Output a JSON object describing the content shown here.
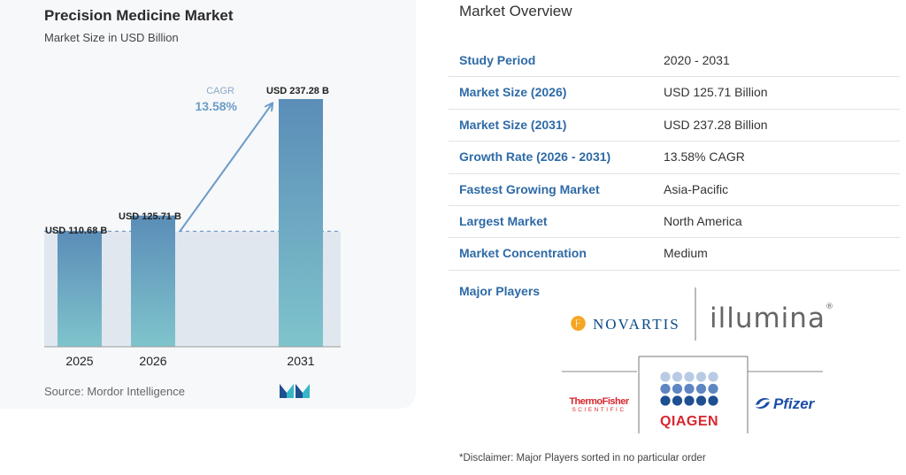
{
  "chart_card": {
    "title": "Precision Medicine Market",
    "subtitle": "Market Size in USD Billion",
    "source": "Source:  Mordor Intelligence",
    "logo": "mordor-intelligence-logo"
  },
  "chart_data": {
    "type": "bar",
    "title": "Precision Medicine Market",
    "subtitle": "Market Size in USD Billion",
    "categories": [
      "2025",
      "2026",
      "2031"
    ],
    "values": [
      110.68,
      125.71,
      237.28
    ],
    "data_labels": [
      "USD 110.68 B",
      "USD 125.71 B",
      "USD 237.28 B"
    ],
    "ylim": [
      0,
      237.28
    ],
    "grid": false,
    "reference_line": {
      "value": 110.68,
      "style": "dashed"
    },
    "annotation": {
      "label": "CAGR",
      "value": "13.58%",
      "from": "2026",
      "to": "2031"
    },
    "colors": {
      "bar_top": "#5b8db8",
      "bar_bottom": "#7fc4cc",
      "shade": "#e1e7ef",
      "arrow": "#6a9cc8",
      "baseline": "#9a9a9a"
    }
  },
  "overview": {
    "title": "Market Overview",
    "rows": [
      {
        "label": "Study Period",
        "value": "2020 - 2031"
      },
      {
        "label": "Market Size (2026)",
        "value": "USD 125.71 Billion"
      },
      {
        "label": "Market Size (2031)",
        "value": "USD 237.28 Billion"
      },
      {
        "label": "Growth Rate (2026 - 2031)",
        "value": "13.58% CAGR"
      },
      {
        "label": "Fastest Growing Market",
        "value": "Asia-Pacific"
      },
      {
        "label": "Largest Market",
        "value": "North America"
      },
      {
        "label": "Market Concentration",
        "value": "Medium"
      }
    ],
    "players_label": "Major Players",
    "players": {
      "novartis": "NOVARTIS",
      "illumina": "illumina",
      "thermo_top": "ThermoFisher",
      "thermo_bottom": "SCIENTIFIC",
      "qiagen": "QIAGEN",
      "pfizer": "Pfizer"
    },
    "disclaimer": "*Disclaimer: Major Players sorted in no particular order"
  }
}
